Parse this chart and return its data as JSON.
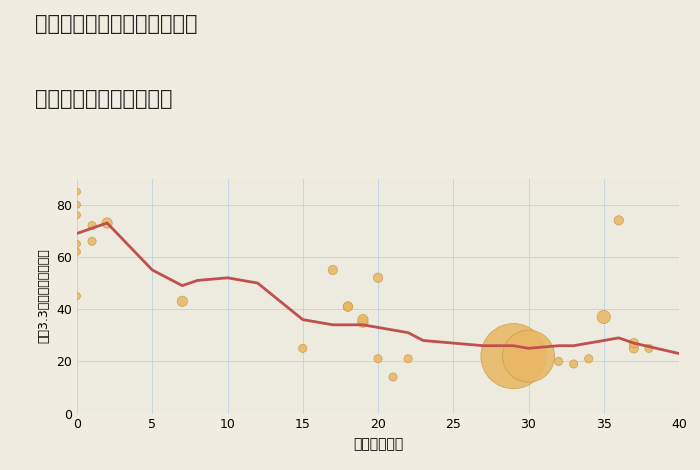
{
  "title_line1": "埼玉県北葛飾郡杉戸町屏風の",
  "title_line2": "築年数別中古戸建て価格",
  "xlabel": "築年数（年）",
  "ylabel": "坪（3.3㎡）単価（万円）",
  "bg_color": "#f0ece0",
  "plot_bg_color": "#edeae0",
  "line_color": "#c0504d",
  "scatter_color": "#e8b866",
  "scatter_edge_color": "#c89840",
  "grid_color": "#c5d5e5",
  "annotation_color": "#c0504d",
  "xlim": [
    0,
    40
  ],
  "ylim": [
    0,
    90
  ],
  "xticks": [
    0,
    5,
    10,
    15,
    20,
    25,
    30,
    35,
    40
  ],
  "yticks": [
    0,
    20,
    40,
    60,
    80
  ],
  "line_data_x": [
    0,
    1,
    2,
    5,
    7,
    8,
    10,
    12,
    15,
    17,
    18,
    19,
    20,
    22,
    23,
    25,
    27,
    29,
    30,
    32,
    33,
    35,
    36,
    37,
    40
  ],
  "line_data_y": [
    69,
    71,
    73,
    55,
    49,
    51,
    52,
    50,
    36,
    34,
    34,
    34,
    33,
    31,
    28,
    27,
    26,
    26,
    25,
    26,
    26,
    28,
    29,
    27,
    23
  ],
  "scatter_x": [
    0,
    0,
    0,
    0,
    0,
    0,
    1,
    1,
    2,
    7,
    15,
    17,
    18,
    18,
    19,
    19,
    20,
    20,
    21,
    22,
    29,
    30,
    32,
    33,
    34,
    35,
    36,
    37,
    37,
    38
  ],
  "scatter_y": [
    85,
    80,
    76,
    65,
    62,
    45,
    72,
    66,
    73,
    43,
    25,
    55,
    41,
    41,
    35,
    36,
    52,
    21,
    14,
    21,
    22,
    22,
    20,
    19,
    21,
    37,
    74,
    25,
    27,
    25
  ],
  "scatter_size": [
    25,
    25,
    25,
    25,
    25,
    25,
    35,
    35,
    55,
    55,
    35,
    45,
    45,
    45,
    55,
    55,
    45,
    35,
    35,
    35,
    2200,
    1400,
    35,
    35,
    35,
    90,
    45,
    45,
    45,
    35
  ]
}
